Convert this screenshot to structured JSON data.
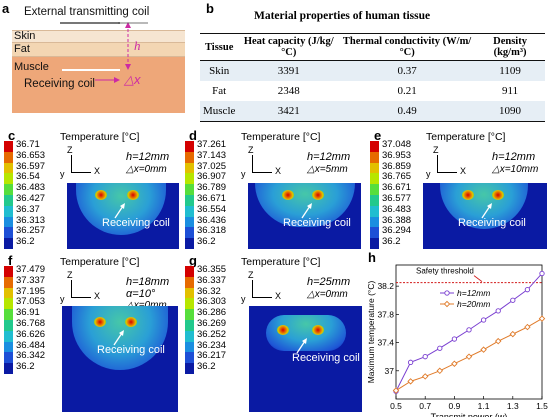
{
  "panel_a": {
    "label": "a",
    "coil_label": "External transmitting coil",
    "skin": "Skin",
    "fat": "Fat",
    "muscle": "Muscle",
    "receiving": "Receiving coil",
    "h": "h",
    "dx": "△x"
  },
  "panel_b": {
    "label": "b",
    "title": "Material properties of human tissue",
    "headers": [
      "Tissue",
      "Heat capacity (J/kg/°C)",
      "Thermal conductivity (W/m/°C)",
      "Density (kg/m³)"
    ],
    "rows": [
      {
        "tissue": "Skin",
        "heat": "3391",
        "cond": "0.37",
        "dens": "1109"
      },
      {
        "tissue": "Fat",
        "heat": "2348",
        "cond": "0.21",
        "dens": "911"
      },
      {
        "tissue": "Muscle",
        "heat": "3421",
        "cond": "0.49",
        "dens": "1090"
      }
    ]
  },
  "sims": {
    "temp_title": "Temperature [°C]",
    "receiving": "Receiving coil",
    "c": {
      "label": "c",
      "ticks": [
        "36.71",
        "36.653",
        "36.597",
        "36.54",
        "36.483",
        "36.427",
        "36.37",
        "36.313",
        "36.257",
        "36.2"
      ],
      "h": "h=12mm",
      "dx": "△x=0mm",
      "alpha": ""
    },
    "d": {
      "label": "d",
      "ticks": [
        "37.261",
        "37.143",
        "37.025",
        "36.907",
        "36.789",
        "36.671",
        "36.554",
        "36.436",
        "36.318",
        "36.2"
      ],
      "h": "h=12mm",
      "dx": "△x=5mm",
      "alpha": ""
    },
    "e": {
      "label": "e",
      "ticks": [
        "37.048",
        "36.953",
        "36.859",
        "36.765",
        "36.671",
        "36.577",
        "36.483",
        "36.388",
        "36.294",
        "36.2"
      ],
      "h": "h=12mm",
      "dx": "△x=10mm",
      "alpha": ""
    },
    "f": {
      "label": "f",
      "ticks": [
        "37.479",
        "37.337",
        "37.195",
        "37.053",
        "36.91",
        "36.768",
        "36.626",
        "36.484",
        "36.342",
        "36.2"
      ],
      "h": "h=18mm",
      "dx": "△x=0mm",
      "alpha": "α=10°"
    },
    "g": {
      "label": "g",
      "ticks": [
        "36.355",
        "36.337",
        "36.32",
        "36.303",
        "36.286",
        "36.269",
        "36.252",
        "36.234",
        "36.217",
        "36.2"
      ],
      "h": "h=25mm",
      "dx": "△x=0mm",
      "alpha": ""
    },
    "axis": {
      "z": "Z",
      "x": "X",
      "y": "y"
    }
  },
  "chart_data": {
    "type": "line",
    "panel_label": "h",
    "xlabel": "Transmit power (w)",
    "ylabel": "Maximum temperature (°C)",
    "xlim": [
      0.5,
      1.5
    ],
    "ylim": [
      36.6,
      38.5
    ],
    "xticks": [
      "0.5",
      "0.7",
      "0.9",
      "1.1",
      "1.3",
      "1.5"
    ],
    "yticks": [
      "37",
      "37.4",
      "37.8",
      "38.2"
    ],
    "threshold": {
      "label": "Safety threshold",
      "value": 38.25
    },
    "series": [
      {
        "name": "h=12mm",
        "color": "#7a3fd1",
        "x": [
          0.5,
          0.6,
          0.7,
          0.8,
          0.9,
          1.0,
          1.1,
          1.2,
          1.3,
          1.4,
          1.5
        ],
        "y": [
          36.71,
          37.12,
          37.2,
          37.32,
          37.45,
          37.58,
          37.72,
          37.85,
          38.0,
          38.15,
          38.38
        ]
      },
      {
        "name": "h=20mm",
        "color": "#e07b2a",
        "x": [
          0.5,
          0.6,
          0.7,
          0.8,
          0.9,
          1.0,
          1.1,
          1.2,
          1.3,
          1.4,
          1.5
        ],
        "y": [
          36.72,
          36.85,
          36.92,
          37.0,
          37.1,
          37.2,
          37.3,
          37.42,
          37.52,
          37.62,
          37.74
        ]
      }
    ]
  }
}
